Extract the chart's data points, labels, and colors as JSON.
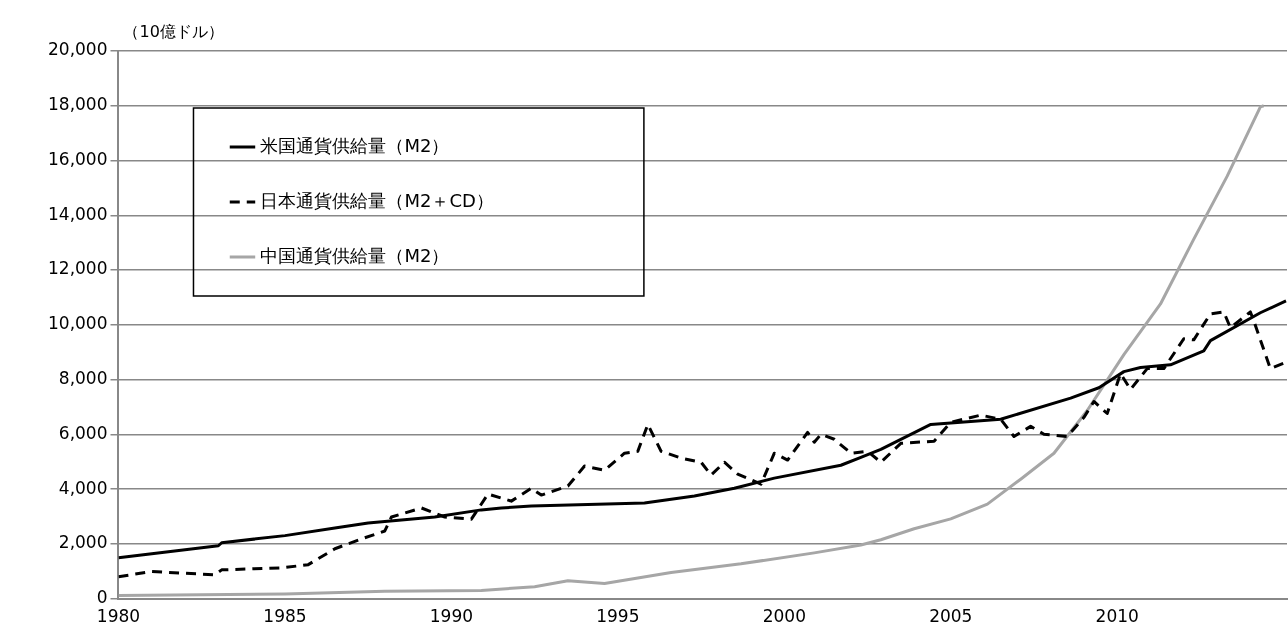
{
  "chart_data": {
    "type": "line",
    "ylabel": "（10億ドル）",
    "xlim": [
      1980,
      2015.1
    ],
    "xticks": [
      1980,
      1985,
      1990,
      1995,
      2000,
      2005,
      2010
    ],
    "ylim": [
      0,
      20000
    ],
    "yticks": [
      0,
      {
        "value": 2000,
        "label": "2,000"
      },
      {
        "value": 4000,
        "label": "4,000"
      },
      {
        "value": 6000,
        "label": "6,000"
      },
      {
        "value": 8000,
        "label": "8,000"
      },
      {
        "value": 10000,
        "label": "10,000"
      },
      {
        "value": 12000,
        "label": "12,000"
      },
      {
        "value": 14000,
        "label": "14,000"
      },
      {
        "value": 16000,
        "label": "16,000"
      },
      {
        "value": 18000,
        "label": "18,000"
      },
      {
        "value": 20000,
        "label": "20,000"
      }
    ],
    "grid": "y",
    "legend": "top left",
    "marker": "none",
    "series": [
      {
        "name": "米国通貨供給量（M2）",
        "color": "#000000",
        "line_style": "solid",
        "x": [
          1980,
          1983,
          1983.1,
          1985,
          1986.5,
          1987.5,
          1989.5,
          1990.9,
          1991.5,
          1992.4,
          1995.8,
          1997.3,
          1998.5,
          1999.7,
          2001.7,
          2002.3,
          2002.9,
          2004.4,
          2006.5,
          2008.6,
          2009.45,
          2010.2,
          2010.7,
          2011.6,
          2012.6,
          2012.8,
          2014.3,
          2015.07
        ],
        "values": [
          1490,
          1930,
          2040,
          2300,
          2580,
          2760,
          2980,
          3240,
          3310,
          3380,
          3490,
          3750,
          4030,
          4400,
          4870,
          5160,
          5450,
          6360,
          6550,
          7320,
          7700,
          8290,
          8440,
          8540,
          9050,
          9420,
          10440,
          10870
        ]
      },
      {
        "name": "日本通貨供給量（M2＋CD）",
        "color": "#000000",
        "line_style": "dashed",
        "x": [
          1980,
          1981,
          1982.9,
          1983.1,
          1984.9,
          1985.7,
          1986.5,
          1987.3,
          1988,
          1988.2,
          1989.1,
          1989.8,
          1990.6,
          1991.1,
          1991.8,
          1992.4,
          1992.7,
          1993.5,
          1994,
          1994.6,
          1995.2,
          1995.6,
          1995.9,
          1996.3,
          1996.9,
          1997.5,
          1997.8,
          1998.2,
          1998.6,
          1999.3,
          1999.7,
          2000.1,
          2000.7,
          2000.9,
          2001.1,
          2001.5,
          2002,
          2002.5,
          2002.9,
          2003.5,
          2004.5,
          2005,
          2005.9,
          2006.5,
          2006.9,
          2007.4,
          2007.8,
          2008.5,
          2009,
          2009.3,
          2009.7,
          2010.1,
          2010.4,
          2010.9,
          2011.4,
          2012,
          2012.3,
          2012.8,
          2013.2,
          2013.4,
          2014,
          2014.1,
          2014.6,
          2015.1
        ],
        "values": [
          800,
          990,
          870,
          1050,
          1120,
          1240,
          1820,
          2180,
          2470,
          2980,
          3310,
          2980,
          2900,
          3820,
          3560,
          4030,
          3780,
          4110,
          4840,
          4690,
          5310,
          5380,
          6360,
          5380,
          5130,
          4980,
          4510,
          4980,
          4550,
          4180,
          5310,
          5060,
          6070,
          5710,
          6000,
          5820,
          5310,
          5380,
          4980,
          5670,
          5750,
          6440,
          6700,
          6550,
          5920,
          6290,
          6000,
          5920,
          6620,
          7200,
          6760,
          8220,
          7640,
          8400,
          8400,
          9490,
          9450,
          10400,
          10470,
          9890,
          10470,
          10150,
          8400,
          8650
        ]
      },
      {
        "name": "中国通貨供給量（M2）",
        "color": "#a6a6a6",
        "line_style": "solid",
        "x": [
          1980,
          1985,
          1988,
          1990.9,
          1992.5,
          1993.5,
          1994.6,
          1996.6,
          1998.7,
          2000.9,
          2002.3,
          2002.9,
          2003.9,
          2005,
          2006.1,
          2007.1,
          2008.1,
          2009.1,
          2010.2,
          2011.3,
          2012.3,
          2013.3,
          2014.3,
          2014.4
        ],
        "values": [
          110,
          170,
          270,
          300,
          430,
          650,
          550,
          950,
          1270,
          1670,
          1960,
          2150,
          2550,
          2910,
          3450,
          4360,
          5310,
          6870,
          8910,
          10760,
          13130,
          15420,
          17960,
          18000
        ]
      }
    ]
  }
}
